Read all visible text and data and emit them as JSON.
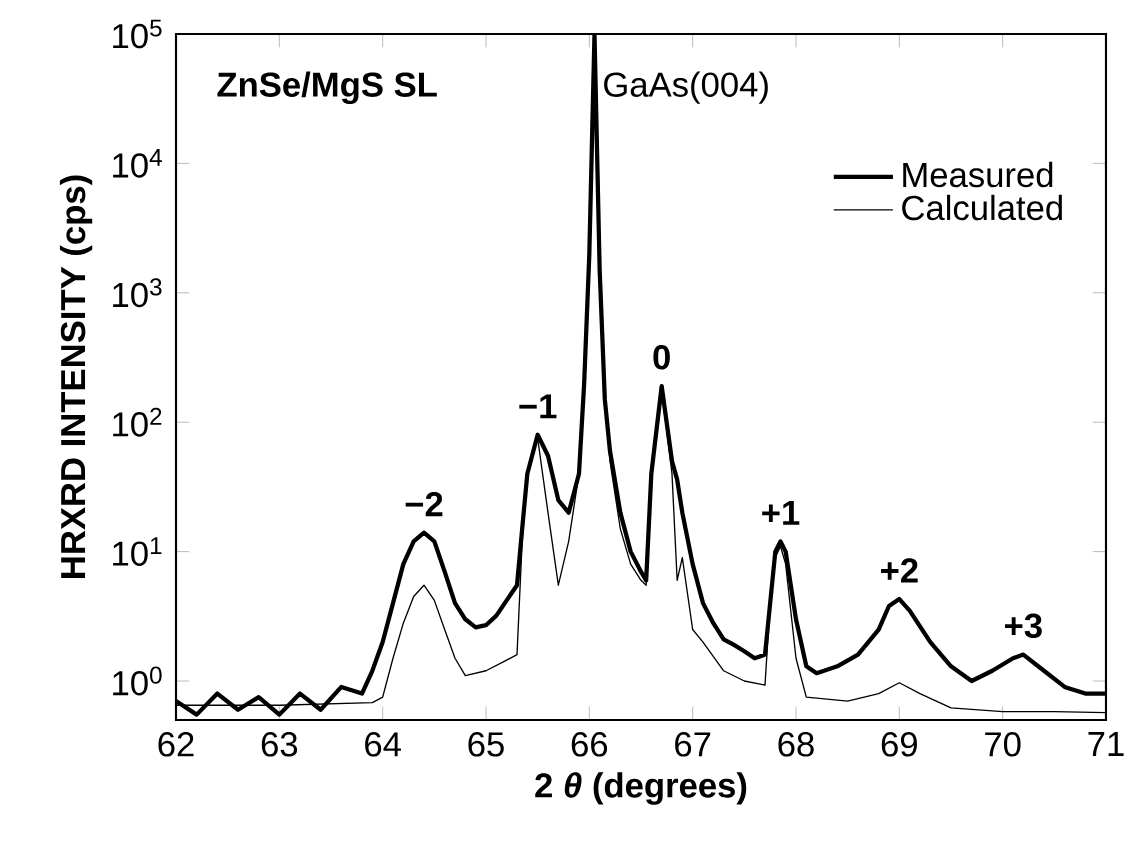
{
  "chart_data": {
    "type": "line",
    "xlabel": "2 *θ*  (degrees)",
    "ylabel": "HRXRD INTENSITY (cps)",
    "log": "y",
    "grid": false,
    "legend": "top right",
    "marker": "none",
    "line_style": "solid",
    "xlim": [
      62,
      71
    ],
    "xticks": [
      62,
      63,
      64,
      65,
      66,
      67,
      68,
      69,
      70,
      71
    ],
    "ylim": [
      0.5,
      100000
    ],
    "yticks": [
      {
        "value": 1,
        "label": "10$^{0}$"
      },
      {
        "value": 10,
        "label": "10$^{1}$"
      },
      {
        "value": 100,
        "label": "10$^{2}$"
      },
      {
        "value": 1000,
        "label": "10$^{3}$"
      },
      {
        "value": 10000,
        "label": "10$^{4}$"
      },
      {
        "value": 100000,
        "label": "10$^{5}$"
      }
    ],
    "annotations": [
      "ZnSe/MgS SL",
      "GaAs(004)",
      {
        "text": "−2",
        "x": 64.4,
        "y": 14
      },
      {
        "text": "−1",
        "x": 65.5,
        "y": 80
      },
      {
        "text": "0",
        "x": 66.7,
        "y": 190
      },
      {
        "text": "+1",
        "x": 67.85,
        "y": 12
      },
      {
        "text": "+2",
        "x": 69.0,
        "y": 4.3
      },
      {
        "text": "+3",
        "x": 70.2,
        "y": 1.6
      }
    ],
    "series": [
      {
        "name": "Measured",
        "color": "#000000",
        "x": [
          62.0,
          62.2,
          62.4,
          62.6,
          62.8,
          63.0,
          63.2,
          63.4,
          63.6,
          63.8,
          63.9,
          64.0,
          64.1,
          64.2,
          64.3,
          64.4,
          64.5,
          64.6,
          64.7,
          64.8,
          64.9,
          65.0,
          65.1,
          65.2,
          65.3,
          65.35,
          65.4,
          65.5,
          65.6,
          65.7,
          65.8,
          65.9,
          65.95,
          66.0,
          66.05,
          66.1,
          66.15,
          66.2,
          66.3,
          66.4,
          66.5,
          66.55,
          66.6,
          66.7,
          66.8,
          66.85,
          66.9,
          67.0,
          67.1,
          67.2,
          67.3,
          67.4,
          67.5,
          67.6,
          67.7,
          67.75,
          67.8,
          67.85,
          67.9,
          68.0,
          68.1,
          68.2,
          68.4,
          68.6,
          68.8,
          68.9,
          69.0,
          69.1,
          69.3,
          69.5,
          69.7,
          69.9,
          70.1,
          70.2,
          70.4,
          70.6,
          70.8,
          71.0
        ],
        "values": [
          0.7,
          0.55,
          0.8,
          0.6,
          0.75,
          0.55,
          0.8,
          0.6,
          0.9,
          0.8,
          1.2,
          2.0,
          4,
          8,
          12,
          14,
          12,
          7,
          4,
          3,
          2.6,
          2.7,
          3.2,
          4.2,
          5.5,
          15,
          40,
          80,
          55,
          25,
          20,
          40,
          200,
          2000,
          100000,
          1500,
          150,
          60,
          20,
          10,
          7,
          6,
          40,
          190,
          50,
          36,
          20,
          8,
          4,
          2.8,
          2.1,
          1.9,
          1.7,
          1.5,
          1.6,
          4,
          10,
          12,
          10,
          3,
          1.3,
          1.15,
          1.3,
          1.6,
          2.5,
          3.8,
          4.3,
          3.5,
          2.0,
          1.3,
          1.0,
          1.2,
          1.5,
          1.6,
          1.2,
          0.9,
          0.8,
          0.8
        ]
      },
      {
        "name": "Calculated",
        "color": "#000000",
        "x": [
          62.0,
          63.0,
          63.9,
          64.0,
          64.1,
          64.2,
          64.3,
          64.4,
          64.5,
          64.6,
          64.7,
          64.8,
          65.0,
          65.2,
          65.3,
          65.35,
          65.4,
          65.5,
          65.6,
          65.7,
          65.8,
          65.9,
          65.95,
          66.0,
          66.05,
          66.1,
          66.15,
          66.2,
          66.3,
          66.4,
          66.5,
          66.55,
          66.6,
          66.7,
          66.8,
          66.85,
          66.9,
          67.0,
          67.1,
          67.3,
          67.5,
          67.7,
          67.75,
          67.8,
          67.85,
          67.9,
          68.0,
          68.1,
          68.5,
          68.8,
          69.0,
          69.2,
          69.5,
          70.0,
          70.5,
          71.0
        ],
        "values": [
          0.65,
          0.65,
          0.68,
          0.75,
          1.5,
          2.8,
          4.5,
          5.5,
          4.2,
          2.5,
          1.5,
          1.1,
          1.2,
          1.45,
          1.6,
          12,
          40,
          75,
          20,
          5.5,
          12,
          40,
          200,
          2000,
          100000,
          1500,
          150,
          50,
          15,
          8,
          6,
          5.5,
          40,
          180,
          40,
          6,
          9,
          2.5,
          2.0,
          1.2,
          1.0,
          0.93,
          4,
          9,
          11,
          8,
          1.5,
          0.75,
          0.7,
          0.8,
          0.97,
          0.8,
          0.62,
          0.58,
          0.58,
          0.57
        ]
      }
    ]
  }
}
